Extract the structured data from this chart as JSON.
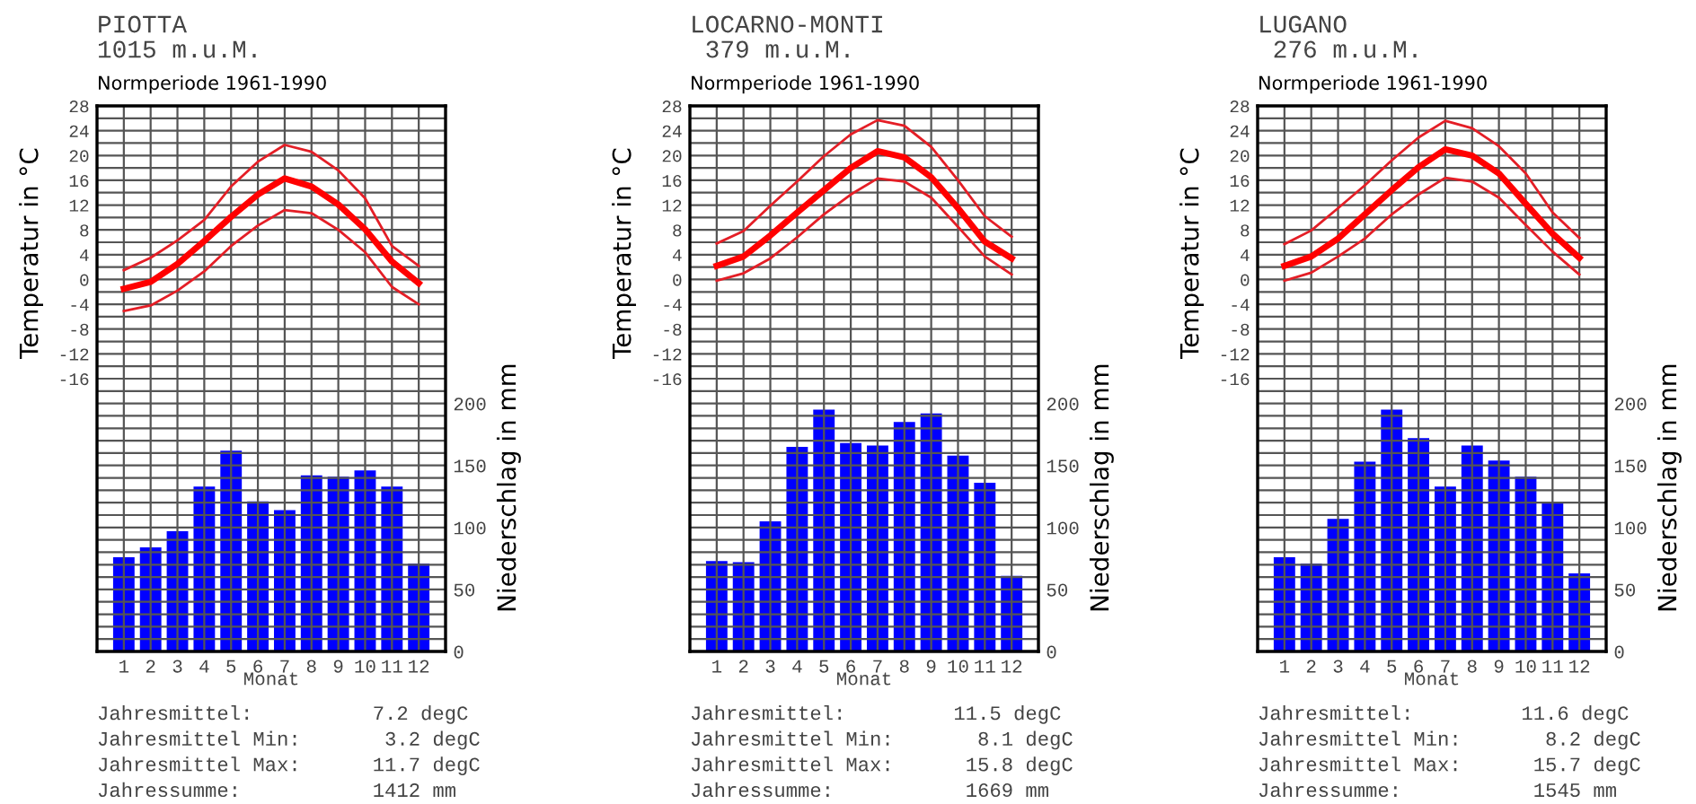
{
  "chart_data": [
    {
      "type": "line",
      "title": "PIOTTA",
      "subtitle": "1015 m.u.M.",
      "xlabel": "Monat",
      "ylabel": "Temperatur in °C",
      "y2label": "Niederschlag in mm",
      "annotations": [
        "Normperiode 1961-1990",
        "Jahresmittel:          7.2 degC",
        "Jahresmittel Min:       3.2 degC",
        "Jahresmittel Max:      11.7 degC",
        "Jahressumme:           1412 mm"
      ],
      "x": [
        1,
        2,
        3,
        4,
        5,
        6,
        7,
        8,
        9,
        10,
        11,
        12
      ],
      "xlim": [
        0,
        13
      ],
      "xticks": [
        1,
        2,
        3,
        4,
        5,
        6,
        7,
        8,
        9,
        10,
        11,
        12
      ],
      "ylim": [
        -60,
        28
      ],
      "yticks": [
        28,
        24,
        20,
        16,
        12,
        8,
        4,
        0,
        -4,
        -8,
        -12,
        -16,
        {
          "value": 26,
          "label": null
        },
        {
          "value": 22,
          "label": null
        },
        {
          "value": 18,
          "label": null
        },
        {
          "value": 14,
          "label": null
        },
        {
          "value": 10,
          "label": null
        },
        {
          "value": 6,
          "label": null
        },
        {
          "value": 2,
          "label": null
        },
        {
          "value": -2,
          "label": null
        },
        {
          "value": -6,
          "label": null
        },
        {
          "value": -10,
          "label": null
        },
        {
          "value": -14,
          "label": null
        },
        {
          "value": -18,
          "label": null
        },
        {
          "value": -20,
          "label": null
        },
        {
          "value": -22,
          "label": null
        },
        {
          "value": -24,
          "label": null
        },
        {
          "value": -26,
          "label": null
        },
        {
          "value": -28,
          "label": null
        },
        {
          "value": -30,
          "label": null
        },
        {
          "value": -32,
          "label": null
        },
        {
          "value": -34,
          "label": null
        },
        {
          "value": -36,
          "label": null
        },
        {
          "value": -38,
          "label": null
        },
        {
          "value": -40,
          "label": null
        },
        {
          "value": -42,
          "label": null
        },
        {
          "value": -44,
          "label": null
        },
        {
          "value": -46,
          "label": null
        },
        {
          "value": -48,
          "label": null
        },
        {
          "value": -50,
          "label": null
        },
        {
          "value": -52,
          "label": null
        },
        {
          "value": -54,
          "label": null
        },
        {
          "value": -56,
          "label": null
        },
        {
          "value": -58,
          "label": null
        }
      ],
      "y2lim": [
        0,
        440
      ],
      "y2ticks": [
        0,
        50,
        100,
        150,
        200
      ],
      "grid": true,
      "series": [
        {
          "type": "bar",
          "axis": "y2",
          "color": "#0000ff",
          "values": [
            76,
            84,
            97,
            133,
            162,
            121,
            114,
            142,
            141,
            146,
            133,
            71
          ]
        },
        {
          "color": "#e41e26",
          "values": [
            1.5,
            3.5,
            6.3,
            9.6,
            15,
            19,
            21.7,
            20.6,
            17.6,
            13.1,
            5.4,
            2.2
          ]
        },
        {
          "color": "#e41e26",
          "values": [
            -5.1,
            -4.2,
            -1.8,
            1.3,
            5.4,
            8.7,
            11.2,
            10.7,
            8,
            4.4,
            -1.2,
            -4
          ]
        },
        {
          "color": "#ff0000",
          "values": [
            -1.5,
            -0.4,
            2.5,
            6.2,
            10.1,
            13.7,
            16.3,
            15,
            12.1,
            8.1,
            2.9,
            -0.6
          ]
        }
      ]
    },
    {
      "type": "line",
      "title": "LOCARNO-MONTI",
      "subtitle": " 379 m.u.M.",
      "xlabel": "Monat",
      "ylabel": "Temperatur in °C",
      "y2label": "Niederschlag in mm",
      "annotations": [
        "Normperiode 1961-1990",
        "Jahresmittel:         11.5 degC",
        "Jahresmittel Min:       8.1 degC",
        "Jahresmittel Max:      15.8 degC",
        "Jahressumme:           1669 mm"
      ],
      "x": [
        1,
        2,
        3,
        4,
        5,
        6,
        7,
        8,
        9,
        10,
        11,
        12
      ],
      "xlim": [
        0,
        13
      ],
      "xticks": [
        1,
        2,
        3,
        4,
        5,
        6,
        7,
        8,
        9,
        10,
        11,
        12
      ],
      "ylim": [
        -60,
        28
      ],
      "yticks": [
        28,
        24,
        20,
        16,
        12,
        8,
        4,
        0,
        -4,
        -8,
        -12,
        -16,
        {
          "value": 26,
          "label": null
        },
        {
          "value": 22,
          "label": null
        },
        {
          "value": 18,
          "label": null
        },
        {
          "value": 14,
          "label": null
        },
        {
          "value": 10,
          "label": null
        },
        {
          "value": 6,
          "label": null
        },
        {
          "value": 2,
          "label": null
        },
        {
          "value": -2,
          "label": null
        },
        {
          "value": -6,
          "label": null
        },
        {
          "value": -10,
          "label": null
        },
        {
          "value": -14,
          "label": null
        },
        {
          "value": -18,
          "label": null
        },
        {
          "value": -20,
          "label": null
        },
        {
          "value": -22,
          "label": null
        },
        {
          "value": -24,
          "label": null
        },
        {
          "value": -26,
          "label": null
        },
        {
          "value": -28,
          "label": null
        },
        {
          "value": -30,
          "label": null
        },
        {
          "value": -32,
          "label": null
        },
        {
          "value": -34,
          "label": null
        },
        {
          "value": -36,
          "label": null
        },
        {
          "value": -38,
          "label": null
        },
        {
          "value": -40,
          "label": null
        },
        {
          "value": -42,
          "label": null
        },
        {
          "value": -44,
          "label": null
        },
        {
          "value": -46,
          "label": null
        },
        {
          "value": -48,
          "label": null
        },
        {
          "value": -50,
          "label": null
        },
        {
          "value": -52,
          "label": null
        },
        {
          "value": -54,
          "label": null
        },
        {
          "value": -56,
          "label": null
        },
        {
          "value": -58,
          "label": null
        }
      ],
      "y2lim": [
        0,
        440
      ],
      "y2ticks": [
        0,
        50,
        100,
        150,
        200
      ],
      "grid": true,
      "series": [
        {
          "type": "bar",
          "axis": "y2",
          "color": "#0000ff",
          "values": [
            73,
            72,
            105,
            165,
            195,
            168,
            166,
            185,
            192,
            158,
            136,
            61
          ]
        },
        {
          "color": "#e41e26",
          "values": [
            5.8,
            7.8,
            11.9,
            15.8,
            19.9,
            23.4,
            25.7,
            24.8,
            21.4,
            16,
            10.2,
            6.9
          ]
        },
        {
          "color": "#e41e26",
          "values": [
            -0.2,
            1,
            3.4,
            6.8,
            10.5,
            13.7,
            16.3,
            15.8,
            13.2,
            8.5,
            3.7,
            0.8
          ]
        },
        {
          "color": "#ff0000",
          "values": [
            2.2,
            3.7,
            7.1,
            10.8,
            14.4,
            18,
            20.7,
            19.7,
            16.5,
            11.5,
            6.1,
            3.4
          ]
        }
      ]
    },
    {
      "type": "line",
      "title": "LUGANO",
      "subtitle": " 276 m.u.M.",
      "xlabel": "Monat",
      "ylabel": "Temperatur in °C",
      "y2label": "Niederschlag in mm",
      "annotations": [
        "Normperiode 1961-1990",
        "Jahresmittel:         11.6 degC",
        "Jahresmittel Min:       8.2 degC",
        "Jahresmittel Max:      15.7 degC",
        "Jahressumme:           1545 mm"
      ],
      "x": [
        1,
        2,
        3,
        4,
        5,
        6,
        7,
        8,
        9,
        10,
        11,
        12
      ],
      "xlim": [
        0,
        13
      ],
      "xticks": [
        1,
        2,
        3,
        4,
        5,
        6,
        7,
        8,
        9,
        10,
        11,
        12
      ],
      "ylim": [
        -60,
        28
      ],
      "yticks": [
        28,
        24,
        20,
        16,
        12,
        8,
        4,
        0,
        -4,
        -8,
        -12,
        -16,
        {
          "value": 26,
          "label": null
        },
        {
          "value": 22,
          "label": null
        },
        {
          "value": 18,
          "label": null
        },
        {
          "value": 14,
          "label": null
        },
        {
          "value": 10,
          "label": null
        },
        {
          "value": 6,
          "label": null
        },
        {
          "value": 2,
          "label": null
        },
        {
          "value": -2,
          "label": null
        },
        {
          "value": -6,
          "label": null
        },
        {
          "value": -10,
          "label": null
        },
        {
          "value": -14,
          "label": null
        },
        {
          "value": -18,
          "label": null
        },
        {
          "value": -20,
          "label": null
        },
        {
          "value": -22,
          "label": null
        },
        {
          "value": -24,
          "label": null
        },
        {
          "value": -26,
          "label": null
        },
        {
          "value": -28,
          "label": null
        },
        {
          "value": -30,
          "label": null
        },
        {
          "value": -32,
          "label": null
        },
        {
          "value": -34,
          "label": null
        },
        {
          "value": -36,
          "label": null
        },
        {
          "value": -38,
          "label": null
        },
        {
          "value": -40,
          "label": null
        },
        {
          "value": -42,
          "label": null
        },
        {
          "value": -44,
          "label": null
        },
        {
          "value": -46,
          "label": null
        },
        {
          "value": -48,
          "label": null
        },
        {
          "value": -50,
          "label": null
        },
        {
          "value": -52,
          "label": null
        },
        {
          "value": -54,
          "label": null
        },
        {
          "value": -56,
          "label": null
        },
        {
          "value": -58,
          "label": null
        }
      ],
      "y2lim": [
        0,
        440
      ],
      "y2ticks": [
        0,
        50,
        100,
        150,
        200
      ],
      "grid": true,
      "series": [
        {
          "type": "bar",
          "axis": "y2",
          "color": "#0000ff",
          "values": [
            76,
            71,
            107,
            153,
            195,
            172,
            133,
            166,
            154,
            141,
            120,
            63
          ]
        },
        {
          "color": "#e41e26",
          "values": [
            5.7,
            7.9,
            11.5,
            15.2,
            19.2,
            22.9,
            25.6,
            24.4,
            21.5,
            17.1,
            10.8,
            6.7
          ]
        },
        {
          "color": "#e41e26",
          "values": [
            -0.2,
            1.1,
            3.7,
            6.6,
            10.5,
            13.7,
            16.4,
            15.8,
            13.2,
            8.8,
            4.5,
            0.8
          ]
        },
        {
          "color": "#ff0000",
          "values": [
            2.2,
            3.7,
            6.6,
            10.5,
            14.4,
            18.1,
            21,
            20,
            17.1,
            12.2,
            7.4,
            3.5
          ]
        }
      ]
    }
  ]
}
